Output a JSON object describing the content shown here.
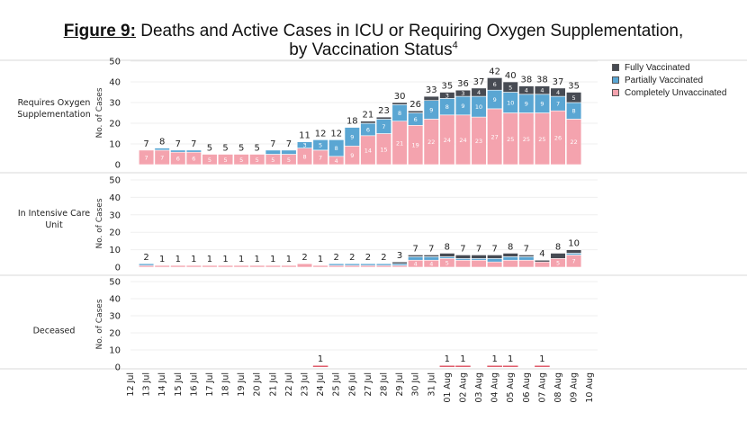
{
  "title": {
    "figure_label": "Figure 9:",
    "line1": "Deaths and Active Cases in ICU or Requiring Oxygen Supplementation,",
    "line2": "by Vaccination Status",
    "superscript": "4"
  },
  "legend": [
    {
      "name": "Fully Vaccinated",
      "color": "#474b53"
    },
    {
      "name": "Partially Vaccinated",
      "color": "#5aa6d3"
    },
    {
      "name": "Completely Unvaccinated",
      "color": "#f4a3ae"
    }
  ],
  "chart_data": {
    "type": "bar",
    "stacked": true,
    "dates": [
      "12 Jul",
      "13 Jul",
      "14 Jul",
      "15 Jul",
      "16 Jul",
      "17 Jul",
      "18 Jul",
      "19 Jul",
      "20 Jul",
      "21 Jul",
      "22 Jul",
      "23 Jul",
      "24 Jul",
      "25 Jul",
      "26 Jul",
      "27 Jul",
      "28 Jul",
      "29 Jul",
      "30 Jul",
      "31 Jul",
      "01 Aug",
      "02 Aug",
      "03 Aug",
      "04 Aug",
      "05 Aug",
      "06 Aug",
      "07 Aug",
      "08 Aug",
      "09 Aug",
      "10 Aug"
    ],
    "ylabel": "No. of Cases",
    "ylim": [
      0,
      50
    ],
    "yticks": [
      0,
      10,
      20,
      30,
      40,
      50
    ],
    "panels": [
      {
        "name": "Requires Oxygen Supplementation",
        "totals": [
          null,
          7,
          8,
          7,
          7,
          5,
          5,
          5,
          5,
          7,
          7,
          11,
          12,
          12,
          18,
          21,
          23,
          30,
          26,
          33,
          35,
          36,
          37,
          42,
          40,
          38,
          38,
          37,
          35,
          null
        ],
        "unvaccinated": [
          null,
          7,
          7,
          6,
          6,
          5,
          5,
          5,
          5,
          5,
          5,
          8,
          7,
          4,
          9,
          14,
          15,
          21,
          19,
          22,
          24,
          24,
          23,
          27,
          25,
          25,
          25,
          26,
          22,
          null
        ],
        "partially": [
          null,
          0,
          1,
          1,
          1,
          0,
          0,
          0,
          0,
          2,
          2,
          3,
          5,
          8,
          9,
          6,
          7,
          8,
          6,
          9,
          8,
          9,
          10,
          9,
          10,
          9,
          9,
          7,
          8,
          null
        ],
        "fully": [
          null,
          0,
          0,
          0,
          0,
          0,
          0,
          0,
          0,
          0,
          0,
          0,
          0,
          0,
          0,
          1,
          1,
          1,
          1,
          2,
          3,
          3,
          4,
          6,
          5,
          4,
          4,
          4,
          5,
          null
        ],
        "segment_labels": {
          "unvaccinated": [
            null,
            "7",
            "7",
            "6",
            "6",
            "5",
            "5",
            "5",
            "5",
            "5",
            "5",
            "8",
            "7",
            "4",
            "9",
            "14",
            "15",
            "21",
            "19",
            "22",
            "24",
            "24",
            "23",
            "27",
            "25",
            "25",
            "25",
            "26",
            "22",
            null
          ],
          "partially": [
            null,
            null,
            null,
            null,
            null,
            null,
            null,
            null,
            null,
            "2",
            "2",
            "3",
            "5",
            "8",
            "9",
            "6",
            "7",
            "8",
            "6",
            "9",
            "8",
            "9",
            "10",
            "9",
            "10",
            "9",
            "9",
            "7",
            "8",
            null
          ],
          "fully": [
            null,
            null,
            null,
            null,
            null,
            null,
            null,
            null,
            null,
            null,
            null,
            null,
            null,
            null,
            null,
            null,
            null,
            null,
            null,
            "2",
            "3",
            "3",
            "4",
            "6",
            "5",
            "4",
            "4",
            "4",
            "5",
            null
          ]
        }
      },
      {
        "name": "In Intensive Care Unit",
        "totals": [
          null,
          2,
          1,
          1,
          1,
          1,
          1,
          1,
          1,
          1,
          1,
          2,
          1,
          2,
          2,
          2,
          2,
          3,
          7,
          7,
          8,
          7,
          7,
          7,
          8,
          7,
          4,
          8,
          10,
          null
        ],
        "unvaccinated": [
          null,
          1,
          1,
          1,
          1,
          1,
          1,
          1,
          1,
          1,
          1,
          2,
          1,
          1,
          1,
          1,
          1,
          1,
          4,
          4,
          5,
          4,
          4,
          3,
          4,
          4,
          3,
          5,
          7,
          null
        ],
        "partially": [
          null,
          1,
          0,
          0,
          0,
          0,
          0,
          0,
          0,
          0,
          0,
          0,
          0,
          1,
          1,
          1,
          1,
          1,
          2,
          2,
          1,
          1,
          1,
          2,
          2,
          2,
          0,
          0,
          1,
          null
        ],
        "fully": [
          null,
          0,
          0,
          0,
          0,
          0,
          0,
          0,
          0,
          0,
          0,
          0,
          0,
          0,
          0,
          0,
          0,
          1,
          1,
          1,
          2,
          2,
          2,
          2,
          2,
          1,
          1,
          3,
          2,
          null
        ],
        "segment_labels": {
          "unvaccinated": [
            null,
            null,
            null,
            null,
            null,
            null,
            null,
            null,
            null,
            null,
            null,
            null,
            null,
            null,
            null,
            null,
            null,
            null,
            "4",
            "4",
            "5",
            null,
            null,
            null,
            null,
            null,
            null,
            "5",
            "7",
            null
          ],
          "partially": [
            null,
            null,
            null,
            null,
            null,
            null,
            null,
            null,
            null,
            null,
            null,
            null,
            null,
            null,
            null,
            null,
            null,
            null,
            null,
            null,
            null,
            null,
            null,
            null,
            null,
            null,
            null,
            null,
            null,
            null
          ],
          "fully": [
            null,
            null,
            null,
            null,
            null,
            null,
            null,
            null,
            null,
            null,
            null,
            null,
            null,
            null,
            null,
            null,
            null,
            null,
            null,
            null,
            null,
            null,
            null,
            null,
            null,
            null,
            null,
            null,
            null,
            null
          ]
        }
      },
      {
        "name": "Deceased",
        "totals": [
          null,
          null,
          null,
          null,
          null,
          null,
          null,
          null,
          null,
          null,
          null,
          null,
          1,
          null,
          null,
          null,
          null,
          null,
          null,
          null,
          1,
          1,
          null,
          1,
          1,
          null,
          1,
          null,
          null,
          null
        ],
        "unvaccinated": [
          null,
          null,
          null,
          null,
          null,
          null,
          null,
          null,
          null,
          null,
          null,
          null,
          1,
          null,
          null,
          null,
          null,
          null,
          null,
          null,
          1,
          1,
          null,
          1,
          1,
          null,
          1,
          null,
          null,
          null
        ],
        "partially": [
          null,
          null,
          null,
          null,
          null,
          null,
          null,
          null,
          null,
          null,
          null,
          null,
          0,
          null,
          null,
          null,
          null,
          null,
          null,
          null,
          0,
          0,
          null,
          0,
          0,
          null,
          0,
          null,
          null,
          null
        ],
        "fully": [
          null,
          null,
          null,
          null,
          null,
          null,
          null,
          null,
          null,
          null,
          null,
          null,
          0,
          null,
          null,
          null,
          null,
          null,
          null,
          null,
          0,
          0,
          null,
          0,
          0,
          null,
          0,
          null,
          null,
          null
        ],
        "segment_labels": {
          "unvaccinated": [
            null,
            null,
            null,
            null,
            null,
            null,
            null,
            null,
            null,
            null,
            null,
            null,
            null,
            null,
            null,
            null,
            null,
            null,
            null,
            null,
            null,
            null,
            null,
            null,
            null,
            null,
            null,
            null,
            null,
            null
          ],
          "partially": [
            null,
            null,
            null,
            null,
            null,
            null,
            null,
            null,
            null,
            null,
            null,
            null,
            null,
            null,
            null,
            null,
            null,
            null,
            null,
            null,
            null,
            null,
            null,
            null,
            null,
            null,
            null,
            null,
            null,
            null
          ],
          "fully": [
            null,
            null,
            null,
            null,
            null,
            null,
            null,
            null,
            null,
            null,
            null,
            null,
            null,
            null,
            null,
            null,
            null,
            null,
            null,
            null,
            null,
            null,
            null,
            null,
            null,
            null,
            null,
            null,
            null,
            null
          ]
        }
      }
    ]
  }
}
